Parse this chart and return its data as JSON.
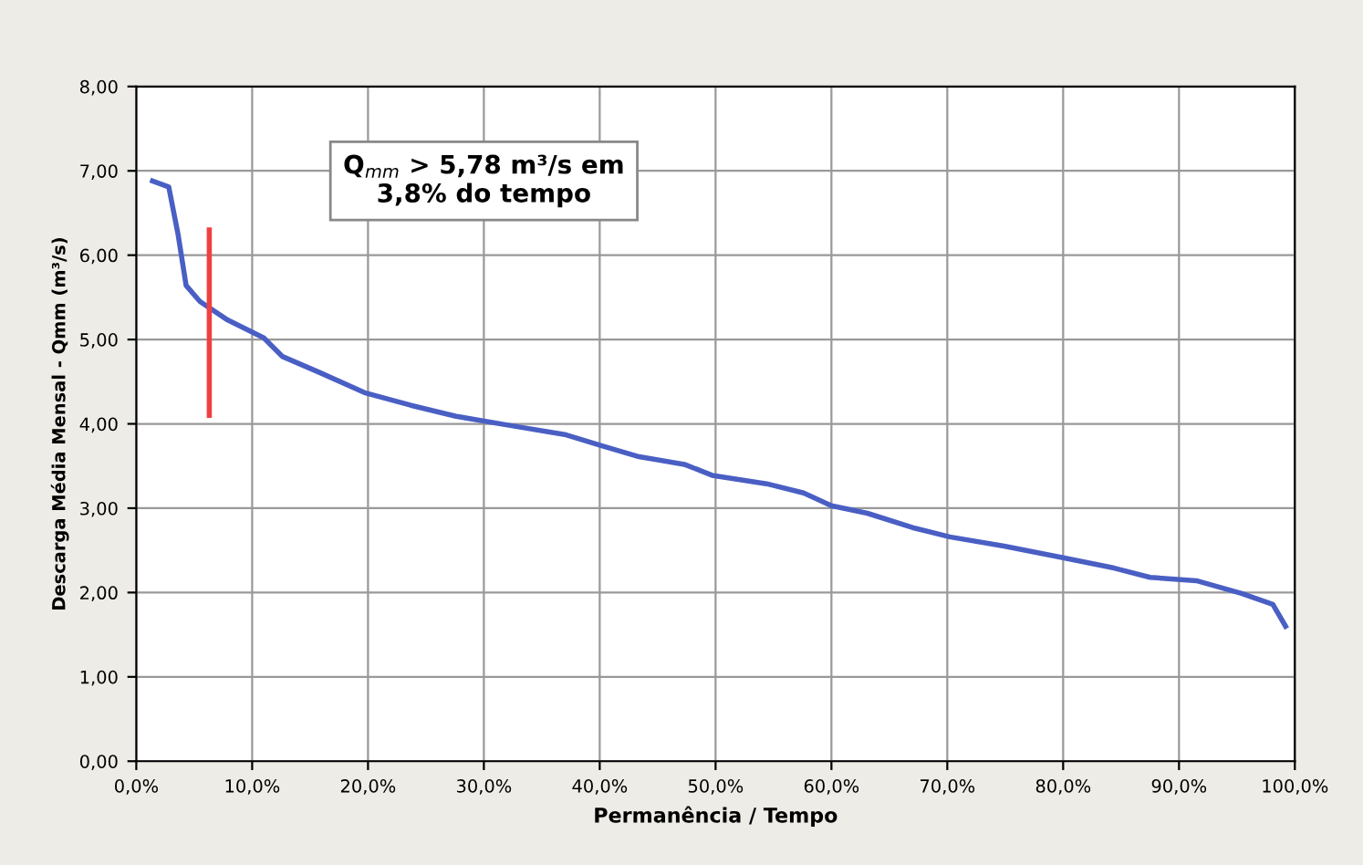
{
  "chart_data": {
    "type": "line",
    "xlabel": "Permanência / Tempo",
    "ylabel": "Descarga Média Mensal - Qmm (m³/s)",
    "annotations": [
      "Q$_{mm}$ > 5,78 m³/s em\n3,8% do tempo"
    ],
    "xlim": [
      0,
      100
    ],
    "xticks": [
      {
        "value": 0,
        "label": "0,0%"
      },
      {
        "value": 10,
        "label": "10,0%"
      },
      {
        "value": 20,
        "label": "20,0%"
      },
      {
        "value": 30,
        "label": "30,0%"
      },
      {
        "value": 40,
        "label": "40,0%"
      },
      {
        "value": 50,
        "label": "50,0%"
      },
      {
        "value": 60,
        "label": "60,0%"
      },
      {
        "value": 70,
        "label": "70,0%"
      },
      {
        "value": 80,
        "label": "80,0%"
      },
      {
        "value": 90,
        "label": "90,0%"
      },
      {
        "value": 100,
        "label": "100,0%"
      }
    ],
    "ylim": [
      0,
      8
    ],
    "yticks": [
      {
        "value": 0,
        "label": "0,00"
      },
      {
        "value": 1,
        "label": "1,00"
      },
      {
        "value": 2,
        "label": "2,00"
      },
      {
        "value": 3,
        "label": "3,00"
      },
      {
        "value": 4,
        "label": "4,00"
      },
      {
        "value": 5,
        "label": "5,00"
      },
      {
        "value": 6,
        "label": "6,00"
      },
      {
        "value": 7,
        "label": "7,00"
      },
      {
        "value": 8,
        "label": "8,00"
      }
    ],
    "grid": true,
    "marker": "none",
    "line_style": "solid",
    "series": [
      {
        "color": "#4a5fc4",
        "x": [
          1.4,
          2.8,
          3.6,
          4.3,
          5.5,
          7.9,
          11.0,
          12.6,
          15.8,
          19.7,
          23.7,
          27.6,
          32.3,
          37.1,
          40.2,
          43.4,
          47.3,
          49.7,
          54.4,
          57.6,
          60.0,
          63.1,
          67.0,
          70.2,
          74.9,
          79.7,
          84.4,
          87.5,
          91.5,
          95.4,
          98.1,
          99.2
        ],
        "values": [
          6.88,
          6.81,
          6.25,
          5.64,
          5.45,
          5.23,
          5.02,
          4.8,
          4.61,
          4.37,
          4.22,
          4.09,
          3.98,
          3.87,
          3.74,
          3.61,
          3.52,
          3.39,
          3.29,
          3.18,
          3.03,
          2.94,
          2.77,
          2.66,
          2.55,
          2.42,
          2.29,
          2.18,
          2.14,
          1.99,
          1.86,
          1.6
        ]
      },
      {
        "color": "#f04040",
        "x": [
          6.3,
          6.3
        ],
        "values": [
          6.3,
          4.1
        ]
      }
    ]
  }
}
